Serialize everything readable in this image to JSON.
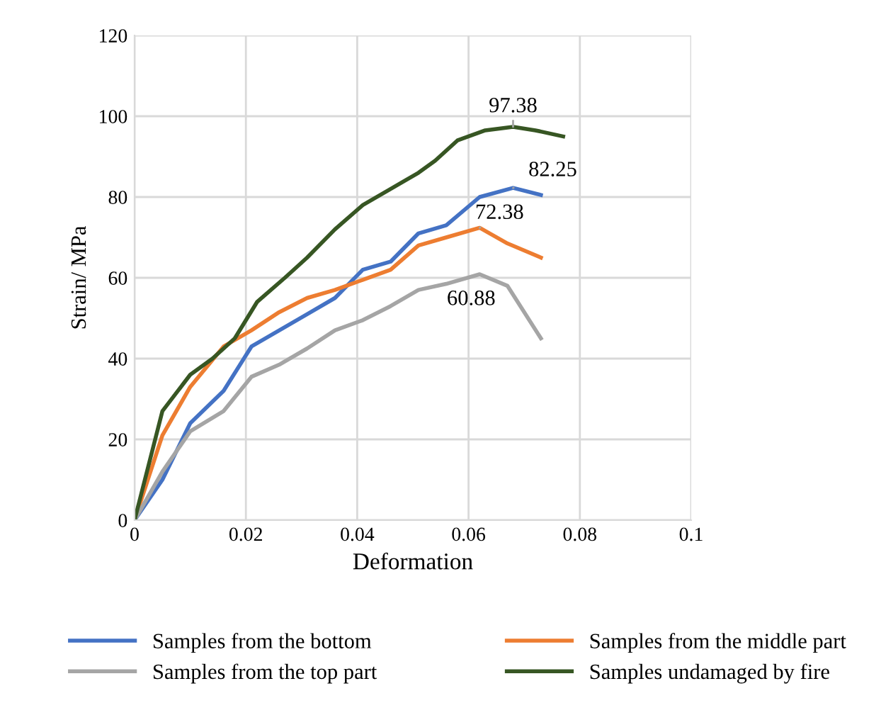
{
  "chart_data": {
    "type": "line",
    "xlabel": "Deformation",
    "ylabel": "Strain/ MPa",
    "xlim": [
      0,
      0.1
    ],
    "xticks": [
      0,
      0.02,
      0.04,
      0.06,
      0.08,
      0.1
    ],
    "ylim": [
      0,
      120
    ],
    "yticks": [
      0,
      20,
      40,
      60,
      80,
      100,
      120
    ],
    "grid": true,
    "legend": "bottom",
    "marker": "none",
    "line_style": "solid",
    "series": [
      {
        "name": "Samples from the bottom",
        "color": "#4472c4",
        "x": [
          0,
          0.005,
          0.01,
          0.016,
          0.021,
          0.026,
          0.031,
          0.036,
          0.041,
          0.046,
          0.051,
          0.056,
          0.062,
          0.068,
          0.073
        ],
        "values": [
          0,
          10,
          24,
          32,
          43,
          47,
          51,
          55,
          62,
          64,
          71,
          73,
          80,
          82.25,
          80.5
        ],
        "value_labels": [
          null,
          null,
          null,
          null,
          null,
          null,
          null,
          null,
          null,
          null,
          null,
          null,
          null,
          "82.25",
          null
        ]
      },
      {
        "name": "Samples from the middle part",
        "color": "#ed7d31",
        "x": [
          0,
          0.005,
          0.01,
          0.016,
          0.021,
          0.026,
          0.031,
          0.036,
          0.041,
          0.046,
          0.051,
          0.056,
          0.062,
          0.067,
          0.073
        ],
        "values": [
          0,
          21,
          33,
          43,
          47,
          51.5,
          55,
          57,
          59.5,
          62,
          68,
          70,
          72.38,
          68.5,
          65
        ],
        "value_labels": [
          null,
          null,
          null,
          null,
          null,
          null,
          null,
          null,
          null,
          null,
          null,
          null,
          "72.38",
          null,
          null
        ]
      },
      {
        "name": "Samples from the top part",
        "color": "#a5a5a5",
        "x": [
          0,
          0.005,
          0.01,
          0.016,
          0.021,
          0.026,
          0.031,
          0.036,
          0.041,
          0.046,
          0.051,
          0.056,
          0.062,
          0.067,
          0.073
        ],
        "values": [
          0,
          12,
          22,
          27,
          35.5,
          38.5,
          42.5,
          47,
          49.5,
          53,
          57,
          58.5,
          60.88,
          58,
          45
        ],
        "value_labels": [
          null,
          null,
          null,
          null,
          null,
          null,
          null,
          null,
          null,
          null,
          null,
          null,
          "60.88",
          null,
          null
        ]
      },
      {
        "name": "Samples undamaged by fire",
        "color": "#375623",
        "x": [
          0,
          0.005,
          0.01,
          0.014,
          0.018,
          0.022,
          0.027,
          0.031,
          0.036,
          0.041,
          0.046,
          0.051,
          0.054,
          0.058,
          0.063,
          0.068,
          0.072,
          0.077
        ],
        "values": [
          0,
          27,
          36,
          40,
          45,
          54,
          60,
          65,
          72,
          78,
          82,
          86,
          89,
          94,
          96.5,
          97.38,
          96.5,
          95
        ],
        "value_labels": [
          null,
          null,
          null,
          null,
          null,
          null,
          null,
          null,
          null,
          null,
          null,
          null,
          null,
          null,
          null,
          "97.38",
          null,
          null
        ]
      }
    ]
  }
}
